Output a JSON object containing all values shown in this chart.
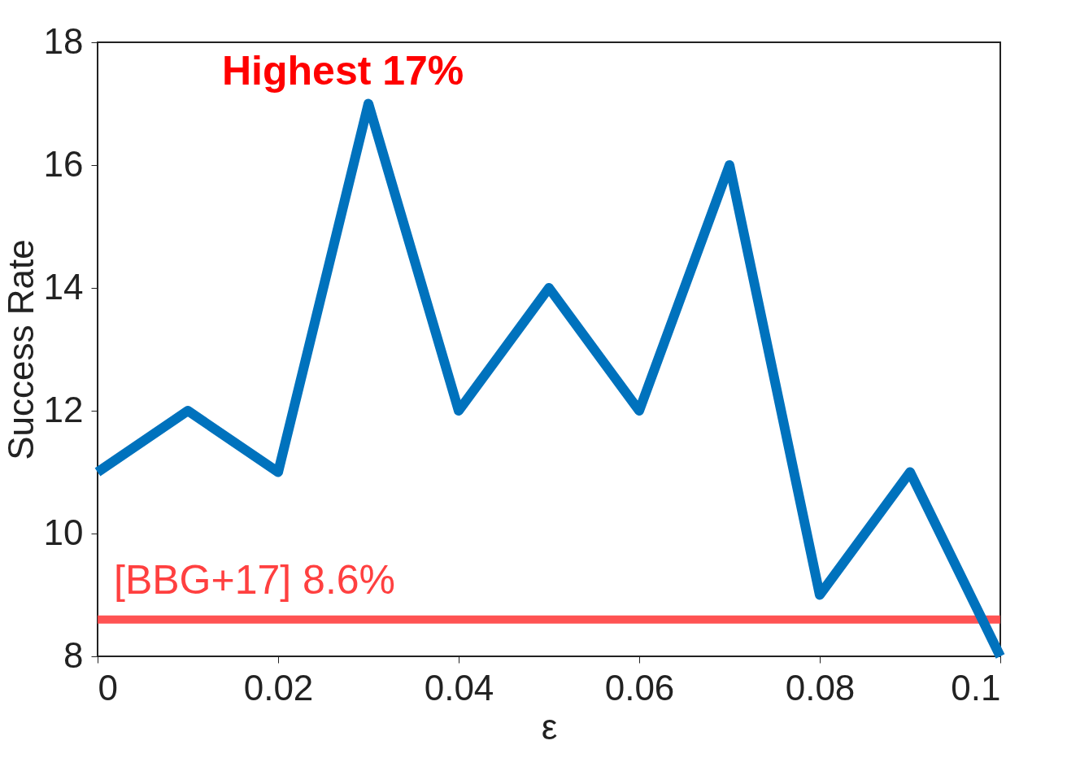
{
  "chart_data": {
    "type": "line",
    "xlabel": "ε",
    "ylabel": "Success Rate",
    "x": [
      0,
      0.01,
      0.02,
      0.03,
      0.04,
      0.05,
      0.06,
      0.07,
      0.08,
      0.09,
      0.1
    ],
    "series": [
      {
        "color": "#0072bd",
        "values": [
          11,
          12,
          11,
          17,
          12,
          14,
          12,
          16,
          9,
          11,
          8
        ]
      }
    ],
    "xlim": [
      0,
      0.1
    ],
    "xticks": [
      0,
      0.02,
      0.04,
      0.06,
      0.08,
      0.1
    ],
    "ylim": [
      8,
      18
    ],
    "yticks": [
      8,
      10,
      12,
      14,
      16,
      18
    ],
    "ref_lines": [
      {
        "axis": "y",
        "value": 8.6,
        "label": "[BBG+17] 8.6%",
        "color": "#ff4040"
      }
    ],
    "annotations": [
      {
        "text": "Highest 17%",
        "x": 0.03,
        "y": 17
      }
    ],
    "line_style": "solid"
  }
}
